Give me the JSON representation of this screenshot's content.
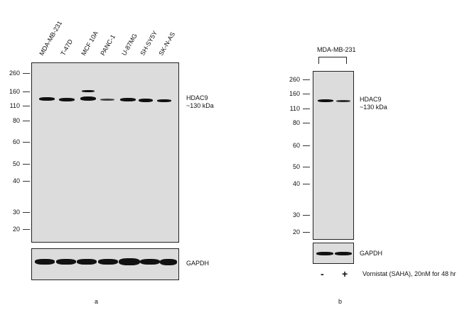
{
  "panel_a": {
    "lanes": [
      "MDA-MB-231",
      "T-47D",
      "MCF 10A",
      "PANC-1",
      "U-87MG",
      "SH-SY5Y",
      "SK-N-AS"
    ],
    "markers": [
      "260",
      "160",
      "110",
      "80",
      "60",
      "50",
      "40",
      "30",
      "20"
    ],
    "target_name": "HDAC9",
    "target_size": "~130 kDa",
    "loading_control": "GAPDH",
    "caption": "a"
  },
  "panel_b": {
    "cell_line": "MDA-MB-231",
    "markers": [
      "260",
      "160",
      "110",
      "80",
      "60",
      "50",
      "40",
      "30",
      "20"
    ],
    "target_name": "HDAC9",
    "target_size": "~130 kDa",
    "loading_control": "GAPDH",
    "treatment_minus": "-",
    "treatment_plus": "+",
    "treatment_label": "Vornistat (SAHA), 20nM for 48 hr",
    "caption": "b"
  },
  "colors": {
    "band": "#111111",
    "membrane": "#dcdcdc",
    "frame": "#222222"
  }
}
